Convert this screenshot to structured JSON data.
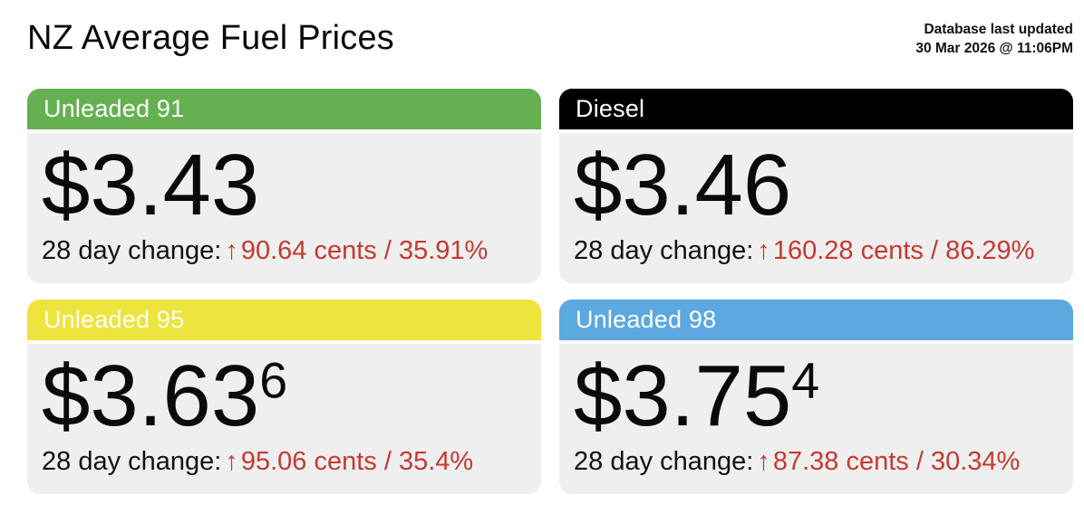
{
  "page": {
    "title": "NZ Average Fuel Prices",
    "updated_label": "Database last updated",
    "updated_value": "30 Mar 2026 @ 11:06PM"
  },
  "colors": {
    "unleaded_91_header": "#65b152",
    "diesel_header": "#000000",
    "unleaded_95_header": "#ede43e",
    "unleaded_98_header": "#5ca8e0",
    "card_body_bg": "#efefef",
    "change_red": "#c43a31"
  },
  "cards": [
    {
      "label": "Unleaded 91",
      "header_color": "#65b152",
      "price_main": "$3.43",
      "price_sup": "",
      "change_label": "28 day change:",
      "arrow": "↑",
      "change_value": "90.64 cents / 35.91%"
    },
    {
      "label": "Diesel",
      "header_color": "#000000",
      "price_main": "$3.46",
      "price_sup": "",
      "change_label": "28 day change:",
      "arrow": "↑",
      "change_value": "160.28 cents / 86.29%"
    },
    {
      "label": "Unleaded 95",
      "header_color": "#ede43e",
      "price_main": "$3.63",
      "price_sup": "6",
      "change_label": "28 day change:",
      "arrow": "↑",
      "change_value": "95.06 cents / 35.4%"
    },
    {
      "label": "Unleaded 98",
      "header_color": "#5ca8e0",
      "price_main": "$3.75",
      "price_sup": "4",
      "change_label": "28 day change:",
      "arrow": "↑",
      "change_value": "87.38 cents / 30.34%"
    }
  ]
}
